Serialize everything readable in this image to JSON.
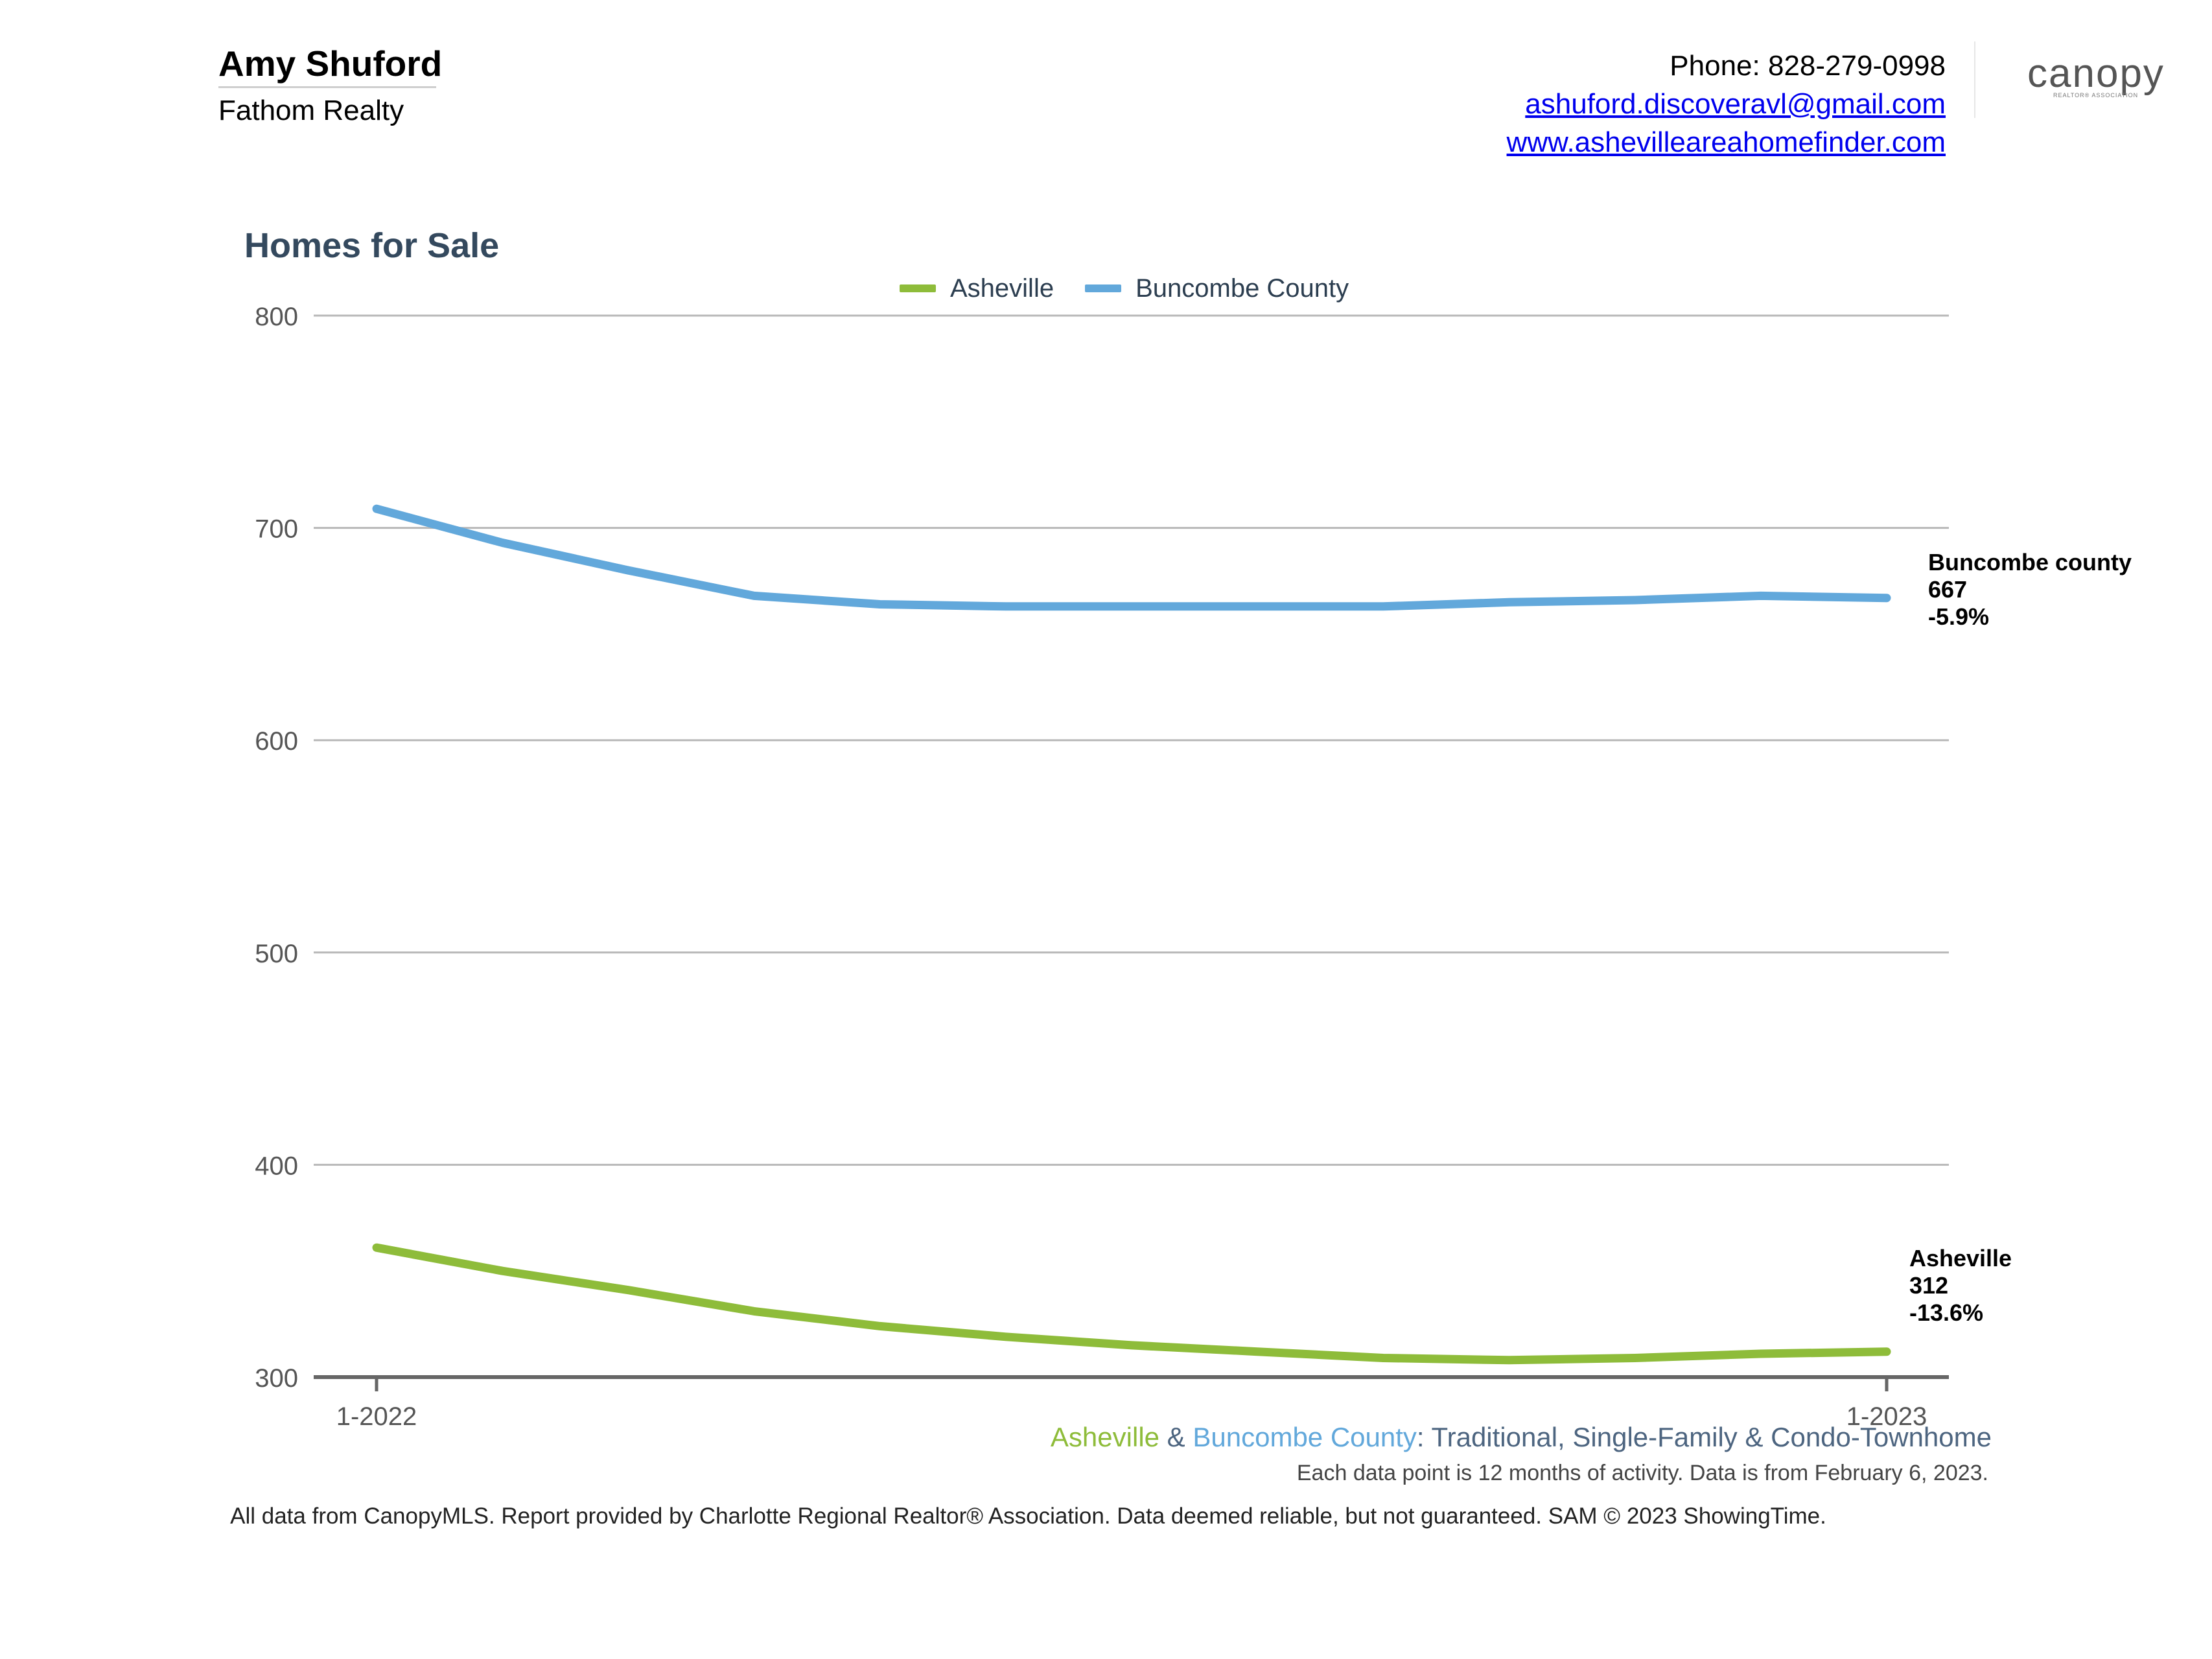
{
  "header": {
    "agent_name": "Amy Shuford",
    "company": "Fathom Realty",
    "phone": "Phone: 828-279-0998",
    "email": "ashuford.discoveravl@gmail.com",
    "website": "www.ashevilleareahomefinder.com",
    "logo_text": "canopy",
    "logo_subtext": "REALTOR® ASSOCIATION"
  },
  "chart_data": {
    "type": "line",
    "title": "Homes for Sale",
    "x": [
      "1-2022",
      "2-2022",
      "3-2022",
      "4-2022",
      "5-2022",
      "6-2022",
      "7-2022",
      "8-2022",
      "9-2022",
      "10-2022",
      "11-2022",
      "12-2022",
      "1-2023"
    ],
    "x_tick_labels": [
      "1-2022",
      "1-2023"
    ],
    "ylim": [
      300,
      800
    ],
    "y_ticks": [
      300,
      400,
      500,
      600,
      700,
      800
    ],
    "grid": true,
    "legend_position": "top-center",
    "series": [
      {
        "name": "Asheville",
        "color": "#8ebc3a",
        "values": [
          361,
          350,
          341,
          331,
          324,
          319,
          315,
          312,
          309,
          308,
          309,
          311,
          312
        ]
      },
      {
        "name": "Buncombe County",
        "color": "#62a8db",
        "values": [
          709,
          693,
          680,
          668,
          664,
          663,
          663,
          663,
          663,
          665,
          666,
          668,
          667
        ]
      }
    ],
    "end_labels": [
      {
        "series": "Buncombe County",
        "name": "Buncombe county",
        "value": "667",
        "change": "-5.9%"
      },
      {
        "series": "Asheville",
        "name": "Asheville",
        "value": "312",
        "change": "-13.6%"
      }
    ]
  },
  "footer": {
    "series_a": "Asheville",
    "amp": " & ",
    "series_b": "Buncombe County",
    "property_types": ": Traditional, Single-Family & Condo-Townhome",
    "note": "Each data point is 12 months of activity. Data is from February 6, 2023.",
    "source": "All data from CanopyMLS. Report provided by Charlotte Regional Realtor® Association. Data deemed reliable, but not guaranteed. SAM © 2023 ShowingTime.",
    "color_a": "#8ebc3a",
    "color_b": "#62a8db"
  }
}
